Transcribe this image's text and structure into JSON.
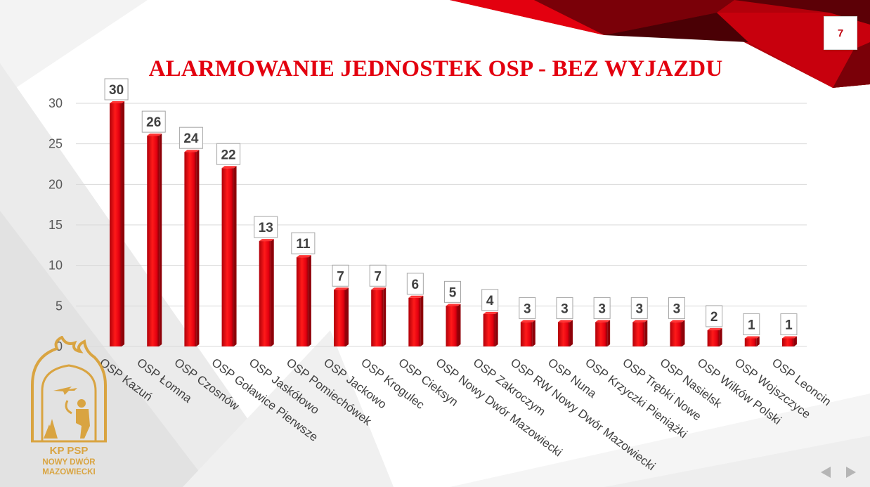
{
  "slide": {
    "title": "ALARMOWANIE JEDNOSTEK OSP - BEZ WYJAZDU",
    "page_number": "7"
  },
  "logo": {
    "line1": "KP PSP",
    "line2": "NOWY DWÓR",
    "line3": "MAZOWIECKI"
  },
  "nav": {
    "prev_icon": "triangle-left-icon",
    "next_icon": "triangle-right-icon"
  },
  "colors": {
    "accent": "#e3000f",
    "bar_dark": "#8e0008",
    "logo": "#d9a441",
    "grid": "#d9d9d9"
  },
  "chart_data": {
    "type": "bar",
    "title": "ALARMOWANIE JEDNOSTEK OSP - BEZ WYJAZDU",
    "categories": [
      "OSP Kazuń",
      "OSP Łomna",
      "OSP Czosnów",
      "OSP Goławice Pierwsze",
      "OSP Jaskółowo",
      "OSP Pomiechówek",
      "OSP Jackowo",
      "OSP Krogulec",
      "OSP Cieksyn",
      "OSP Nowy Dwór Mazowiecki",
      "OSP Zakroczym",
      "OSP RW Nowy Dwór Mazowiecki",
      "OSP Nuna",
      "OSP Krzyczki Pieniążki",
      "OSP Trębki Nowe",
      "OSP Nasielsk",
      "OSP Wilków Polski",
      "OSP Wojszczyce",
      "OSP Leoncin"
    ],
    "values": [
      30,
      26,
      24,
      22,
      13,
      11,
      7,
      7,
      6,
      5,
      4,
      3,
      3,
      3,
      3,
      3,
      2,
      1,
      1
    ],
    "yticks": [
      0,
      5,
      10,
      15,
      20,
      25,
      30
    ],
    "ylim": [
      0,
      30
    ],
    "xlabel": "",
    "ylabel": "",
    "grid": true,
    "legend": "none",
    "data_labels": true
  }
}
